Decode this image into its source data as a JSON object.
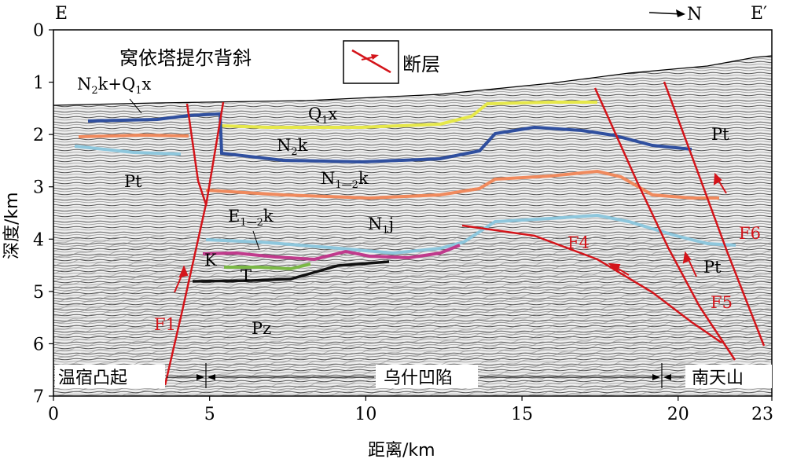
{
  "corners": {
    "left": "E",
    "right": "E′"
  },
  "north_arrow": "N",
  "anticline_label": "窝依塔提尔背斜",
  "legend": {
    "fault_label": "断层"
  },
  "units": {
    "n2k_q1x": {
      "base": "N",
      "sub1": "2",
      "mid": "k+Q",
      "sub2": "1",
      "tail": "x"
    },
    "q1x": {
      "base": "Q",
      "sub": "1",
      "tail": "x"
    },
    "n2k": {
      "base": "N",
      "sub": "2",
      "tail": "k"
    },
    "n12k": {
      "base": "N",
      "sub": "1—2",
      "tail": "k"
    },
    "e12k": {
      "base": "E",
      "sub": "1—2",
      "tail": "k"
    },
    "n1j": {
      "base": "N",
      "sub": "1",
      "tail": "j"
    },
    "pt_left": "Pt",
    "pt_right_top": "Pt",
    "pt_right_bottom": "Pt",
    "k": "K",
    "t": "T",
    "pz": "Pz"
  },
  "faults": {
    "f1": "F1",
    "f4": "F4",
    "f5": "F5",
    "f6": "F6"
  },
  "zones": {
    "left": "温宿凸起",
    "middle": "乌什凹陷",
    "right": "南天山"
  },
  "axes": {
    "y_label": "深度/km",
    "x_label": "距离/km",
    "y_ticks": [
      "0",
      "1",
      "2",
      "3",
      "4",
      "5",
      "6",
      "7"
    ],
    "x_ticks": [
      "0",
      "5",
      "10",
      "15",
      "20",
      "23"
    ]
  },
  "colors": {
    "fault": "#d4141a",
    "q1x_base": "#e6e84a",
    "n2k_base": "#2f4f9f",
    "n12k_base": "#f08a5d",
    "e12k_base": "#8ec7dd",
    "k_base": "#c03a8c",
    "t_base": "#7ab845",
    "pz_top": "#111111"
  }
}
